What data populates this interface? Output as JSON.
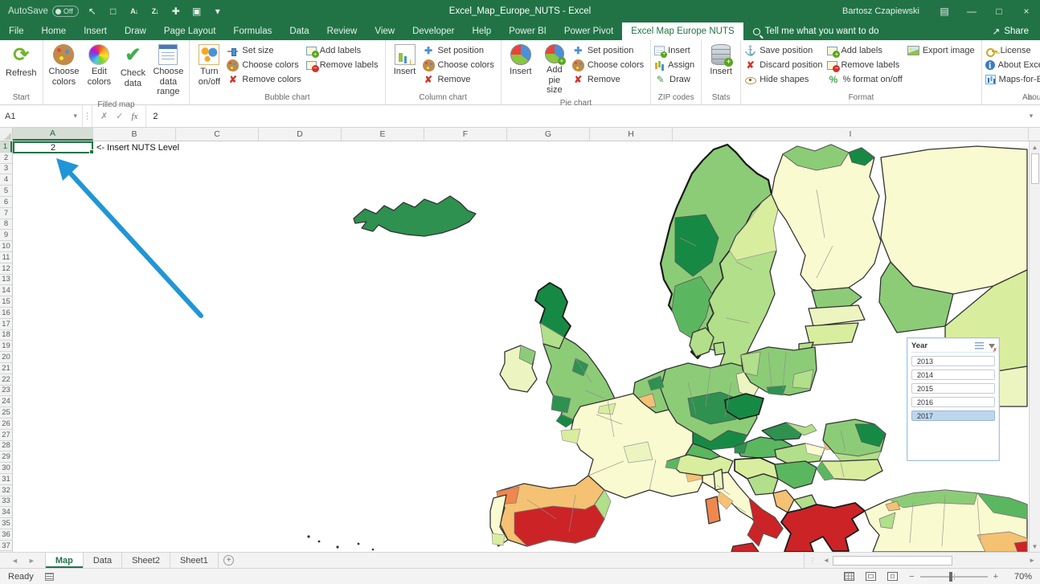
{
  "titlebar": {
    "autosave_label": "AutoSave",
    "autosave_state": "Off",
    "title": "Excel_Map_Europe_NUTS  -  Excel",
    "user": "Bartosz Czapiewski",
    "qat_icons": [
      {
        "name": "cursor-icon",
        "glyph": "↖"
      },
      {
        "name": "format-painter-icon",
        "glyph": "□"
      },
      {
        "name": "sort-ascending-icon",
        "glyph": "A↓"
      },
      {
        "name": "sort-descending-icon",
        "glyph": "Z↓"
      },
      {
        "name": "touch-mode-icon",
        "glyph": "✚"
      },
      {
        "name": "switch-windows-icon",
        "glyph": "▣"
      },
      {
        "name": "customize-qat-icon",
        "glyph": "▾"
      }
    ],
    "window_icons": [
      {
        "name": "ribbon-display-options-icon",
        "glyph": "▤"
      },
      {
        "name": "minimize-icon",
        "glyph": "—"
      },
      {
        "name": "restore-icon",
        "glyph": "□"
      },
      {
        "name": "close-icon",
        "glyph": "×"
      }
    ]
  },
  "tabs": {
    "items": [
      "File",
      "Home",
      "Insert",
      "Draw",
      "Page Layout",
      "Formulas",
      "Data",
      "Review",
      "View",
      "Developer",
      "Help",
      "Power BI",
      "Power Pivot",
      "Excel Map Europe NUTS"
    ],
    "active": "Excel Map Europe NUTS",
    "tellme": "Tell me what you want to do",
    "share": "Share"
  },
  "ribbon": {
    "groups": [
      {
        "label": "Start",
        "blocks": [
          {
            "type": "big",
            "buttons": [
              {
                "label": "Refresh",
                "icon": "refresh"
              }
            ]
          }
        ]
      },
      {
        "label": "Filled map",
        "blocks": [
          {
            "type": "big",
            "buttons": [
              {
                "label": "Choose colors",
                "icon": "palette"
              },
              {
                "label": "Edit colors",
                "icon": "wheel"
              },
              {
                "label": "Check data",
                "icon": "check"
              },
              {
                "label": "Choose data range",
                "icon": "range"
              }
            ]
          }
        ]
      },
      {
        "label": "Bubble chart",
        "blocks": [
          {
            "type": "big",
            "buttons": [
              {
                "label": "Turn on/off",
                "icon": "bubbles"
              }
            ]
          },
          {
            "type": "small",
            "buttons": [
              {
                "label": "Set size",
                "icon": "size"
              },
              {
                "label": "Choose colors",
                "icon": "palette-s"
              },
              {
                "label": "Remove colors",
                "icon": "removex"
              }
            ]
          },
          {
            "type": "small",
            "buttons": [
              {
                "label": "Add labels",
                "icon": "label-add"
              },
              {
                "label": "Remove labels",
                "icon": "label-rem"
              }
            ]
          }
        ]
      },
      {
        "label": "Column chart",
        "blocks": [
          {
            "type": "big",
            "buttons": [
              {
                "label": "Insert",
                "icon": "colchart"
              }
            ]
          },
          {
            "type": "small",
            "buttons": [
              {
                "label": "Set position",
                "icon": "move"
              },
              {
                "label": "Choose colors",
                "icon": "palette-s"
              },
              {
                "label": "Remove",
                "icon": "removex"
              }
            ]
          }
        ]
      },
      {
        "label": "Pie chart",
        "blocks": [
          {
            "type": "big",
            "buttons": [
              {
                "label": "Insert",
                "icon": "pie"
              },
              {
                "label": "Add pie size",
                "icon": "pie-add"
              }
            ]
          },
          {
            "type": "small",
            "buttons": [
              {
                "label": "Set position",
                "icon": "move"
              },
              {
                "label": "Choose colors",
                "icon": "palette-s"
              },
              {
                "label": "Remove",
                "icon": "removex"
              }
            ]
          }
        ]
      },
      {
        "label": "ZIP codes",
        "blocks": [
          {
            "type": "small",
            "buttons": [
              {
                "label": "Insert",
                "icon": "table-add"
              },
              {
                "label": "Assign",
                "icon": "assign"
              },
              {
                "label": "Draw",
                "icon": "draw"
              }
            ]
          }
        ]
      },
      {
        "label": "Stats",
        "blocks": [
          {
            "type": "big",
            "buttons": [
              {
                "label": "Insert",
                "icon": "db-add"
              }
            ]
          }
        ]
      },
      {
        "label": "Format",
        "blocks": [
          {
            "type": "small",
            "buttons": [
              {
                "label": "Save position",
                "icon": "anchor"
              },
              {
                "label": "Discard position",
                "icon": "removex"
              },
              {
                "label": "Hide shapes",
                "icon": "eye"
              }
            ]
          },
          {
            "type": "small",
            "buttons": [
              {
                "label": "Add labels",
                "icon": "label-add"
              },
              {
                "label": "Remove labels",
                "icon": "label-rem"
              },
              {
                "label": "% format on/off",
                "icon": "percent"
              }
            ]
          },
          {
            "type": "small",
            "buttons": [
              {
                "label": "Export image",
                "icon": "image"
              }
            ]
          }
        ]
      },
      {
        "label": "About",
        "blocks": [
          {
            "type": "small",
            "buttons": [
              {
                "label": "License",
                "icon": "key"
              },
              {
                "label": "About Excel Map",
                "icon": "info"
              },
              {
                "label": "Maps-for-Excel.com",
                "icon": "chart"
              }
            ]
          }
        ]
      }
    ]
  },
  "icons": {
    "refresh": "⟳",
    "palette": "",
    "wheel": "",
    "check": "✔",
    "range": "",
    "bubbles": "",
    "size": "",
    "palette-s": "",
    "removex": "✘",
    "label-add": "",
    "label-rem": "",
    "colchart": "",
    "move": "✚",
    "pie": "",
    "pie-add": "",
    "table-add": "",
    "assign": "",
    "draw": "✎",
    "db-add": "",
    "anchor": "⚓",
    "eye": "",
    "percent": "%",
    "image": "",
    "key": "",
    "info": "i",
    "chart": "",
    "collapse": "∧"
  },
  "formula_bar": {
    "name_box": "A1",
    "value": "2"
  },
  "sheet": {
    "a1_value": "2",
    "b1_note": "<- Insert NUTS Level"
  },
  "grid": {
    "columns": [
      "A",
      "B",
      "C",
      "D",
      "E",
      "F",
      "G",
      "H",
      "I"
    ],
    "selected_column": "A",
    "selected_row": 1,
    "rows": [
      1,
      2,
      3,
      4,
      5,
      6,
      7,
      8,
      9,
      10,
      11,
      12,
      13,
      14,
      15,
      16,
      17,
      18,
      19,
      20,
      21,
      22,
      23,
      24,
      25,
      26,
      27,
      28,
      29,
      30,
      31,
      32,
      33,
      34,
      35,
      36,
      37
    ]
  },
  "slicer": {
    "title": "Year",
    "items": [
      "2013",
      "2014",
      "2015",
      "2016",
      "2017"
    ],
    "selected": "2017"
  },
  "sheet_tabs": {
    "items": [
      {
        "label": "Map",
        "active": true
      },
      {
        "label": "Data",
        "active": false
      },
      {
        "label": "Sheet2",
        "active": false
      },
      {
        "label": "Sheet1",
        "active": false
      }
    ]
  },
  "status_bar": {
    "status": "Ready",
    "zoom": "70%"
  },
  "map": {
    "palette": {
      "dark_green": "#168a44",
      "green": "#2e9150",
      "mid_green": "#5bb75f",
      "soft_green": "#8ccc77",
      "light_green": "#b2df8a",
      "pale_green": "#d9ed9f",
      "paler_green": "#ecf5c0",
      "pale_yellow": "#fafad0",
      "tan": "#f5c173",
      "orange": "#f0874f",
      "red": "#cc2327"
    },
    "regions": {
      "iceland": "green",
      "norway-main": "soft_green",
      "norway-dark": "dark_green",
      "norway-south": "mid_green",
      "sweden-main": "light_green",
      "sweden-north": "pale_green",
      "finland": "pale_yellow",
      "lapland": "soft_green",
      "finland-dark": "dark_green",
      "russia-main": "pale_yellow",
      "russia-green": "soft_green",
      "russia-pale": "pale_green",
      "russia-pale2": "paler_green",
      "estonia": "soft_green",
      "latvia": "paler_green",
      "lithuania": "pale_green",
      "kaliningrad": "light_green",
      "scotland": "dark_green",
      "scotland-south": "light_green",
      "england": "soft_green",
      "wales": "green",
      "england-nw": "green",
      "london": "dark_green",
      "cornwall": "dark_green",
      "ireland": "paler_green",
      "ireland-ne": "soft_green",
      "denmark": "light_green",
      "denmark-isle": "light_green",
      "germany": "soft_green",
      "germany-mid": "green",
      "germany-south": "dark_green",
      "germany-ne": "paler_green",
      "benelux": "soft_green",
      "belgium-orange": "tan",
      "netherlands-dark": "green",
      "france": "pale_yellow",
      "brittany": "pale_green",
      "normandy": "pale_green",
      "france-center": "paler_green",
      "france-se": "tan",
      "france-w": "pale_green",
      "switzerland": "mid_green",
      "austria": "mid_green",
      "austria-w": "green",
      "czech": "dark_green",
      "poland": "soft_green",
      "poland-w": "light_green",
      "poland-e": "light_green",
      "poland-s": "green",
      "slovakia": "green",
      "slovakia-e": "light_green",
      "hungary": "light_green",
      "hungary-pale": "pale_yellow",
      "hungary-orange": "tan",
      "romania": "soft_green",
      "romania-dark": "dark_green",
      "romania-s": "light_green",
      "serbia": "mid_green",
      "croatia": "pale_green",
      "bosnia": "light_green",
      "bulgaria": "pale_green",
      "bulgaria-w": "mid_green",
      "albania": "tan",
      "macedonia": "light_green",
      "greece": "red",
      "turkey": "pale_yellow",
      "turkey-north": "soft_green",
      "turkey-ne": "mid_green",
      "turkey-w": "light_green",
      "turkey-se": "tan",
      "turkey-red": "red",
      "turkey-nw": "tan",
      "italy-north": "pale_green",
      "italy-nw": "mid_green",
      "italy-peninsula": "pale_yellow",
      "italy-center": "tan",
      "italy-south": "red",
      "italy-calabria": "red",
      "corsica": "paler_green",
      "sardinia": "orange",
      "sicily": "red",
      "spain": "tan",
      "galicia": "orange",
      "spain-red": "red",
      "spain-east": "light_green",
      "portugal": "pale_yellow",
      "portugal-s": "pale_green"
    },
    "arrow_color": "#2196d6"
  }
}
